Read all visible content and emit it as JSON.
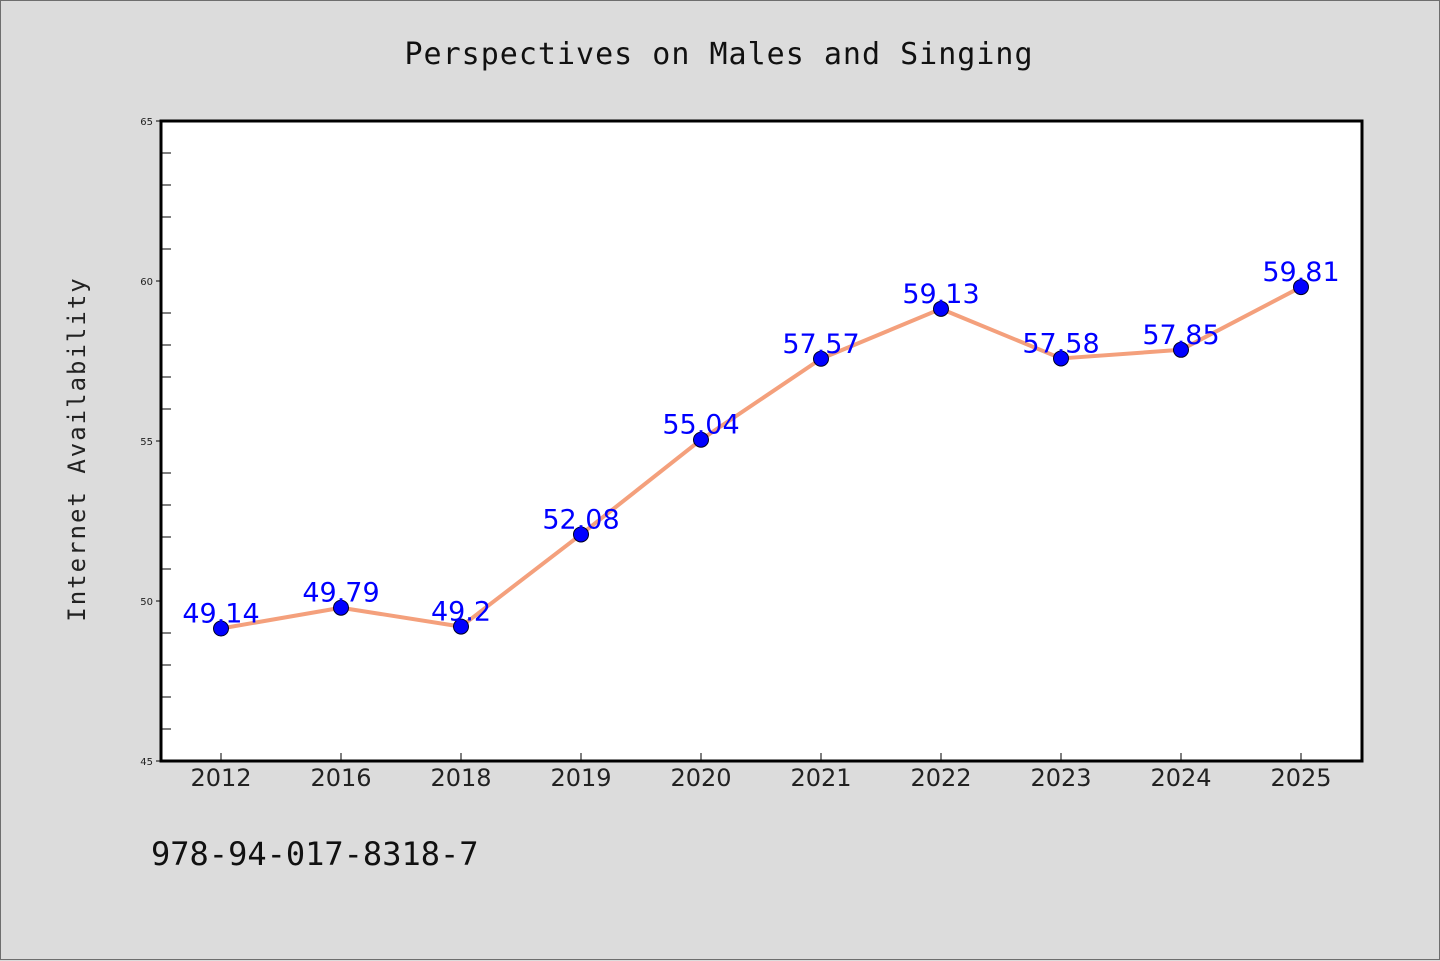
{
  "chart_data": {
    "type": "line",
    "title": "Perspectives on Males and Singing",
    "xlabel": "",
    "ylabel": "Internet Availability",
    "categories": [
      "2012",
      "2016",
      "2018",
      "2019",
      "2020",
      "2021",
      "2022",
      "2023",
      "2024",
      "2025"
    ],
    "series": [
      {
        "values": [
          49.14,
          49.79,
          49.2,
          52.08,
          55.04,
          57.57,
          59.13,
          57.58,
          57.85,
          59.81
        ],
        "data_labels": [
          "49.14",
          "49.79",
          "49.2",
          "52.08",
          "55.04",
          "57.57",
          "59.13",
          "57.58",
          "57.85",
          "59.81"
        ],
        "line_color": "#f4a07c",
        "marker_color": "#0000ff"
      }
    ],
    "ylim": [
      45,
      65
    ],
    "yticks": [
      "45",
      "50",
      "55",
      "60",
      "65"
    ],
    "grid": false,
    "legend": "none"
  },
  "annotation": "978-94-017-8318-7"
}
